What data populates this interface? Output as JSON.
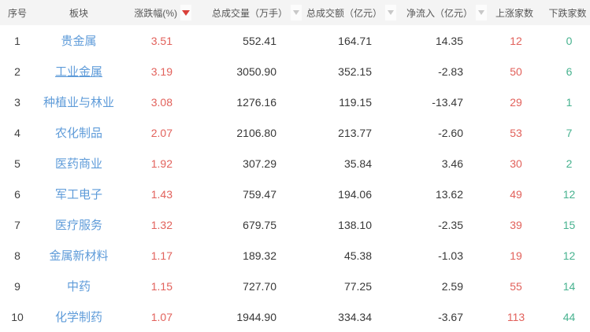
{
  "table": {
    "columns": [
      {
        "key": "seq",
        "label": "序号",
        "sort": "none"
      },
      {
        "key": "name",
        "label": "板块",
        "sort": "none"
      },
      {
        "key": "change",
        "label": "涨跌幅(%)",
        "sort": "desc-active"
      },
      {
        "key": "volume",
        "label": "总成交量（万手）",
        "sort": "inactive"
      },
      {
        "key": "turnover",
        "label": "总成交额（亿元）",
        "sort": "inactive"
      },
      {
        "key": "inflow",
        "label": "净流入（亿元）",
        "sort": "inactive"
      },
      {
        "key": "up",
        "label": "上涨家数",
        "sort": "none"
      },
      {
        "key": "down",
        "label": "下跌家数",
        "sort": "none"
      }
    ],
    "rows": [
      {
        "seq": "1",
        "name": "贵金属",
        "change": "3.51",
        "volume": "552.41",
        "turnover": "164.71",
        "inflow": "14.35",
        "up": "12",
        "down": "0",
        "hovered": false
      },
      {
        "seq": "2",
        "name": "工业金属",
        "change": "3.19",
        "volume": "3050.90",
        "turnover": "352.15",
        "inflow": "-2.83",
        "up": "50",
        "down": "6",
        "hovered": true
      },
      {
        "seq": "3",
        "name": "种植业与林业",
        "change": "3.08",
        "volume": "1276.16",
        "turnover": "119.15",
        "inflow": "-13.47",
        "up": "29",
        "down": "1",
        "hovered": false
      },
      {
        "seq": "4",
        "name": "农化制品",
        "change": "2.07",
        "volume": "2106.80",
        "turnover": "213.77",
        "inflow": "-2.60",
        "up": "53",
        "down": "7",
        "hovered": false
      },
      {
        "seq": "5",
        "name": "医药商业",
        "change": "1.92",
        "volume": "307.29",
        "turnover": "35.84",
        "inflow": "3.46",
        "up": "30",
        "down": "2",
        "hovered": false
      },
      {
        "seq": "6",
        "name": "军工电子",
        "change": "1.43",
        "volume": "759.47",
        "turnover": "194.06",
        "inflow": "13.62",
        "up": "49",
        "down": "12",
        "hovered": false
      },
      {
        "seq": "7",
        "name": "医疗服务",
        "change": "1.32",
        "volume": "679.75",
        "turnover": "138.10",
        "inflow": "-2.35",
        "up": "39",
        "down": "15",
        "hovered": false
      },
      {
        "seq": "8",
        "name": "金属新材料",
        "change": "1.17",
        "volume": "189.32",
        "turnover": "45.38",
        "inflow": "-1.03",
        "up": "19",
        "down": "12",
        "hovered": false
      },
      {
        "seq": "9",
        "name": "中药",
        "change": "1.15",
        "volume": "727.70",
        "turnover": "77.25",
        "inflow": "2.59",
        "up": "55",
        "down": "14",
        "hovered": false
      },
      {
        "seq": "10",
        "name": "化学制药",
        "change": "1.07",
        "volume": "1944.90",
        "turnover": "334.34",
        "inflow": "-3.67",
        "up": "113",
        "down": "44",
        "hovered": false
      }
    ],
    "colors": {
      "up_red": "#e2615b",
      "down_green": "#47b28f",
      "link_blue": "#5e9bd9",
      "sort_active_red": "#d9403a",
      "header_bg": "#f4f4f4"
    }
  }
}
